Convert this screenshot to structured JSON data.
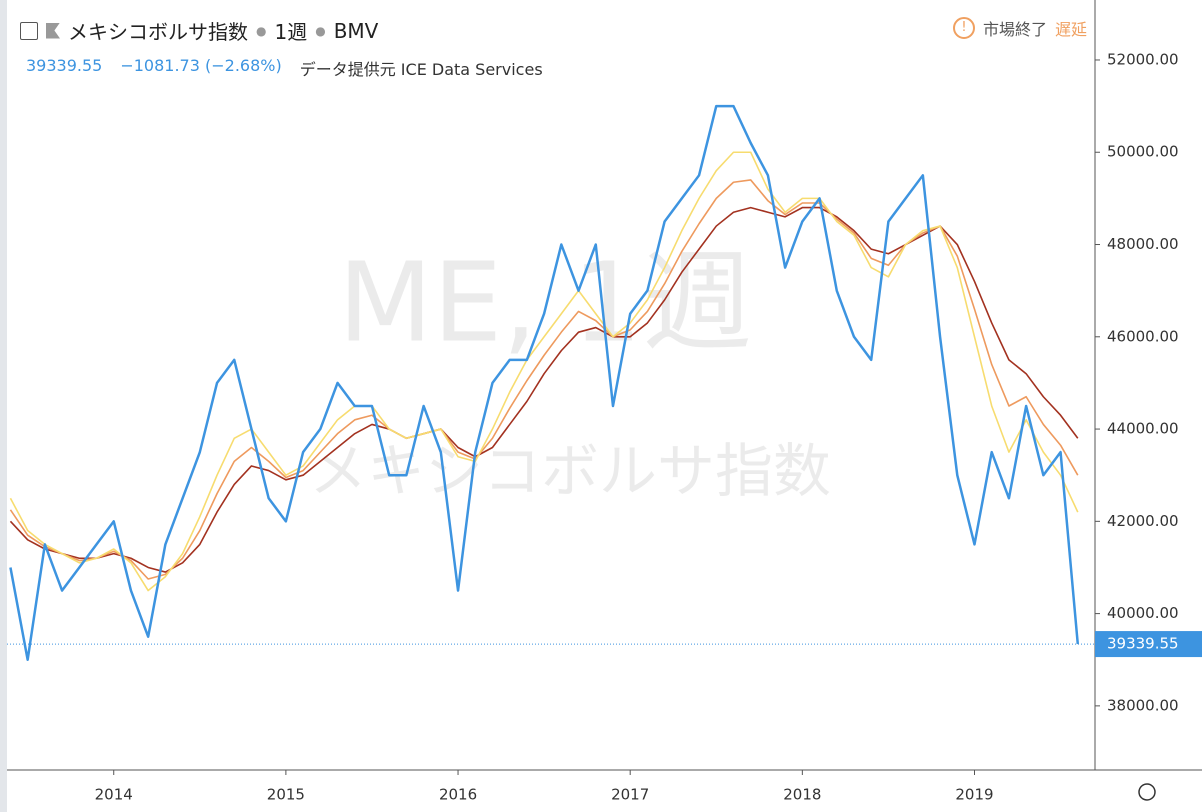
{
  "chart_data": {
    "type": "line",
    "title": "メキシコボルサ指数",
    "interval": "1週",
    "exchange": "BMV",
    "status": "市場終了",
    "delay": "遅延",
    "last_price_label": "39339.55",
    "change": "−1081.73 (−2.68%)",
    "source": "データ提供元 ICE Data Services",
    "watermark": "ME, 1週",
    "watermark_sub": "メキシコボルサ指数",
    "x": [
      2013.4,
      2013.5,
      2013.6,
      2013.7,
      2013.8,
      2013.9,
      2014.0,
      2014.1,
      2014.2,
      2014.3,
      2014.4,
      2014.5,
      2014.6,
      2014.7,
      2014.8,
      2014.9,
      2015.0,
      2015.1,
      2015.2,
      2015.3,
      2015.4,
      2015.5,
      2015.6,
      2015.7,
      2015.8,
      2015.9,
      2016.0,
      2016.1,
      2016.2,
      2016.3,
      2016.4,
      2016.5,
      2016.6,
      2016.7,
      2016.8,
      2016.9,
      2017.0,
      2017.1,
      2017.2,
      2017.3,
      2017.4,
      2017.5,
      2017.6,
      2017.7,
      2017.8,
      2017.9,
      2018.0,
      2018.1,
      2018.2,
      2018.3,
      2018.4,
      2018.5,
      2018.6,
      2018.7,
      2018.8,
      2018.9,
      2019.0,
      2019.1,
      2019.2,
      2019.3,
      2019.4,
      2019.5,
      2019.6
    ],
    "series": [
      {
        "color": "#3d94e0",
        "values": [
          41000,
          39000,
          41500,
          40500,
          41000,
          41500,
          42000,
          40500,
          39500,
          41500,
          42500,
          43500,
          45000,
          45500,
          44000,
          42500,
          42000,
          43500,
          44000,
          45000,
          44500,
          44500,
          43000,
          43000,
          44500,
          43500,
          40500,
          43500,
          45000,
          45500,
          45500,
          46500,
          48000,
          47000,
          48000,
          44500,
          46500,
          47000,
          48500,
          49000,
          49500,
          51000,
          51000,
          50200,
          49500,
          47500,
          48500,
          49000,
          47000,
          46000,
          45500,
          48500,
          49000,
          49500,
          46000,
          43000,
          41500,
          43500,
          42500,
          44500,
          43000,
          43500,
          39339.55
        ]
      },
      {
        "color": "#f7dc6f",
        "values": [
          42500,
          41800,
          41500,
          41300,
          41100,
          41200,
          41400,
          41100,
          40500,
          40800,
          41300,
          42100,
          43000,
          43800,
          44000,
          43500,
          43000,
          43200,
          43700,
          44200,
          44500,
          44500,
          44000,
          43800,
          43900,
          44000,
          43400,
          43300,
          44000,
          44800,
          45500,
          46000,
          46500,
          47000,
          46500,
          46000,
          46300,
          46800,
          47500,
          48300,
          49000,
          49600,
          50000,
          50000,
          49200,
          48700,
          49000,
          49000,
          48500,
          48200,
          47500,
          47300,
          48000,
          48300,
          48400,
          47500,
          46000,
          44500,
          43500,
          44200,
          43500,
          43000,
          42200
        ]
      },
      {
        "color": "#ee9a5e",
        "values": [
          42250,
          41700,
          41450,
          41300,
          41150,
          41200,
          41350,
          41150,
          40750,
          40850,
          41200,
          41800,
          42600,
          43300,
          43600,
          43300,
          42950,
          43100,
          43500,
          43900,
          44200,
          44300,
          44000,
          43800,
          43900,
          44000,
          43500,
          43350,
          43800,
          44450,
          45050,
          45600,
          46100,
          46550,
          46350,
          46000,
          46150,
          46550,
          47150,
          47850,
          48450,
          49000,
          49350,
          49400,
          48950,
          48650,
          48900,
          48900,
          48550,
          48250,
          47700,
          47550,
          48000,
          48250,
          48400,
          47750,
          46600,
          45400,
          44500,
          44700,
          44100,
          43650,
          43000
        ]
      },
      {
        "color": "#a33220",
        "values": [
          42000,
          41600,
          41400,
          41300,
          41200,
          41200,
          41300,
          41200,
          41000,
          40900,
          41100,
          41500,
          42200,
          42800,
          43200,
          43100,
          42900,
          43000,
          43300,
          43600,
          43900,
          44100,
          44000,
          43800,
          43900,
          44000,
          43600,
          43400,
          43600,
          44100,
          44600,
          45200,
          45700,
          46100,
          46200,
          46000,
          46000,
          46300,
          46800,
          47400,
          47900,
          48400,
          48700,
          48800,
          48700,
          48600,
          48800,
          48800,
          48600,
          48300,
          47900,
          47800,
          48000,
          48200,
          48400,
          48000,
          47200,
          46300,
          45500,
          45200,
          44700,
          44300,
          43800
        ]
      }
    ],
    "xlim": [
      2013.38,
      2019.7
    ],
    "xticks": [
      2014,
      2015,
      2016,
      2017,
      2018,
      2019
    ],
    "ylim": [
      36610,
      53300
    ],
    "yticks": [
      {
        "value": 38000,
        "label": "38000.00"
      },
      {
        "value": 40000,
        "label": "40000.00"
      },
      {
        "value": 42000,
        "label": "42000.00"
      },
      {
        "value": 44000,
        "label": "44000.00"
      },
      {
        "value": 46000,
        "label": "46000.00"
      },
      {
        "value": 48000,
        "label": "48000.00"
      },
      {
        "value": 50000,
        "label": "50000.00"
      },
      {
        "value": 52000,
        "label": "52000.00"
      }
    ],
    "grid": false
  }
}
